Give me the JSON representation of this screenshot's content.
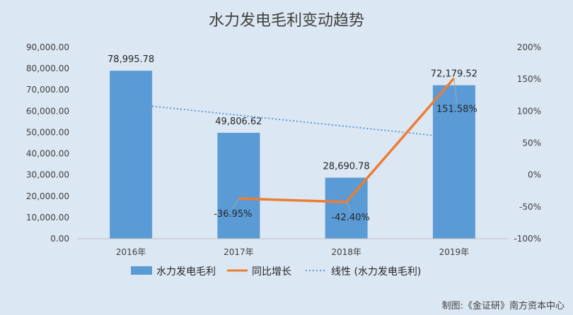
{
  "chart_data": {
    "type": "bar",
    "title": "水力发电毛利变动趋势",
    "categories": [
      "2016年",
      "2017年",
      "2018年",
      "2019年"
    ],
    "series": [
      {
        "name": "水力发电毛利",
        "type": "bar",
        "axis": "left",
        "color": "#5b9bd5",
        "values": [
          78995.78,
          49806.62,
          28690.78,
          72179.52
        ],
        "labels": [
          "78,995.78",
          "49,806.62",
          "28,690.78",
          "72,179.52"
        ]
      },
      {
        "name": "同比增长",
        "type": "line",
        "axis": "right",
        "color": "#ed7d31",
        "values": [
          null,
          -36.95,
          -42.4,
          151.58
        ],
        "labels": [
          "",
          "-36.95%",
          "-42.40%",
          "151.58%"
        ]
      },
      {
        "name": "线性 (水力发电毛利)",
        "type": "trendline",
        "axis": "left",
        "color": "#5b9bd5",
        "style": "dotted",
        "values": [
          63334.61,
          58079.38,
          52824.15,
          47568.92
        ]
      }
    ],
    "y_left": {
      "ylim": [
        0,
        90000
      ],
      "ticks": [
        "0.00",
        "10,000.00",
        "20,000.00",
        "30,000.00",
        "40,000.00",
        "50,000.00",
        "60,000.00",
        "70,000.00",
        "80,000.00",
        "90,000.00"
      ]
    },
    "y_right": {
      "ylim": [
        -100,
        200
      ],
      "ticks": [
        "-100%",
        "-50%",
        "0%",
        "50%",
        "100%",
        "150%",
        "200%"
      ]
    },
    "grid": false,
    "legend_position": "bottom",
    "source_note": "制图:《金证研》南方资本中心"
  }
}
